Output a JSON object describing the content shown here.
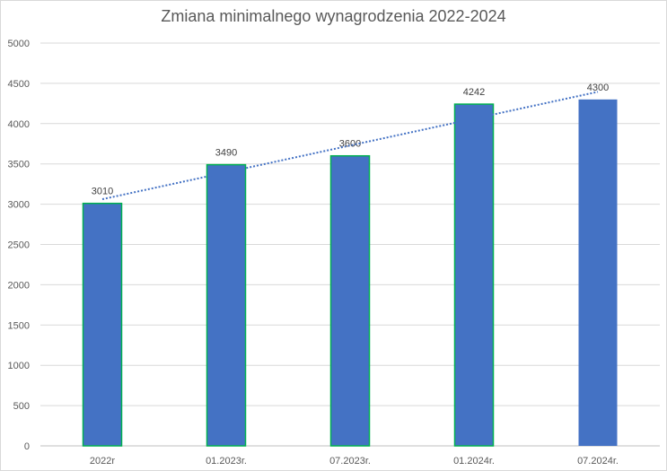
{
  "chart_data": {
    "type": "bar",
    "title": "Zmiana minimalnego wynagrodzenia 2022-2024",
    "categories": [
      "2022r",
      "01.2023r.",
      "07.2023r.",
      "01.2024r.",
      "07.2024r."
    ],
    "values": [
      3010,
      3490,
      3600,
      4242,
      4300
    ],
    "data_labels": [
      "3010",
      "3490",
      "3600",
      "4242",
      "4300"
    ],
    "ylim": [
      0,
      5000
    ],
    "yticks": [
      0,
      500,
      1000,
      1500,
      2000,
      2500,
      3000,
      3500,
      4000,
      4500,
      5000
    ],
    "grid": true,
    "legend": "none",
    "trendline": {
      "type": "linear",
      "style": "dotted"
    },
    "colors": {
      "bar": "#4472c4",
      "bar_outline": "#00b050",
      "trendline": "#4472c4",
      "grid": "#d9d9d9",
      "text": "#595959"
    },
    "bar_outlined": [
      true,
      true,
      true,
      true,
      false
    ]
  }
}
